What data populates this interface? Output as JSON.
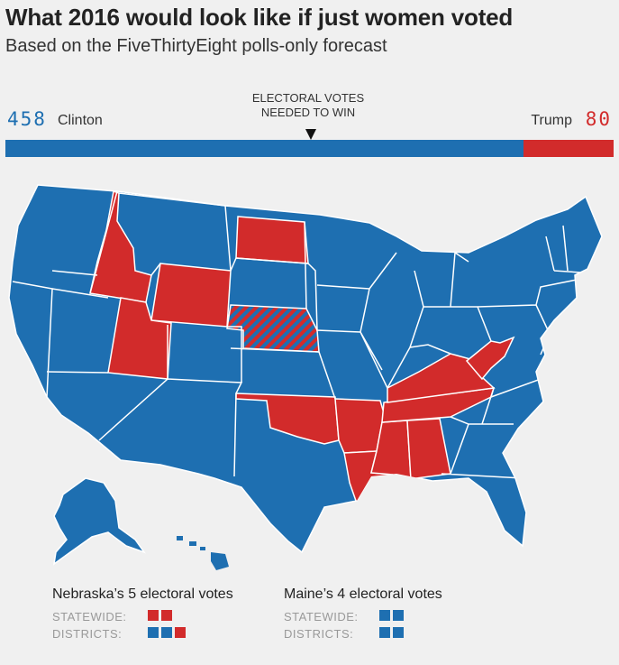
{
  "header": {
    "title": "What 2016 would look like if just women voted",
    "subtitle": "Based on the FiveThirtyEight polls-only forecast"
  },
  "tally": {
    "clinton_votes": "458",
    "clinton_label": "Clinton",
    "trump_votes": "80",
    "trump_label": "Trump",
    "needed_label_line1": "ELECTORAL VOTES",
    "needed_label_line2": "NEEDED TO WIN",
    "total_votes": 538,
    "needed_to_win": 270
  },
  "colors": {
    "clinton": "#1e6fb1",
    "trump": "#d22b2b",
    "background": "#f0f0f0",
    "state_border": "#ffffff"
  },
  "map": {
    "trump_states": [
      "ID",
      "WY",
      "ND",
      "UT",
      "OK",
      "AR",
      "LA",
      "MS",
      "AL",
      "TN",
      "KY",
      "WV"
    ],
    "split_states": [
      "NE"
    ],
    "clinton_states": "all other states plus DC"
  },
  "legend": {
    "nebraska": {
      "title": "Nebraska’s 5 electoral votes",
      "statewide_label": "STATEWIDE:",
      "districts_label": "DISTRICTS:",
      "statewide": [
        "trump",
        "trump"
      ],
      "districts": [
        "clinton",
        "clinton",
        "trump"
      ]
    },
    "maine": {
      "title": "Maine’s 4 electoral votes",
      "statewide_label": "STATEWIDE:",
      "districts_label": "DISTRICTS:",
      "statewide": [
        "clinton",
        "clinton"
      ],
      "districts": [
        "clinton",
        "clinton"
      ]
    }
  }
}
